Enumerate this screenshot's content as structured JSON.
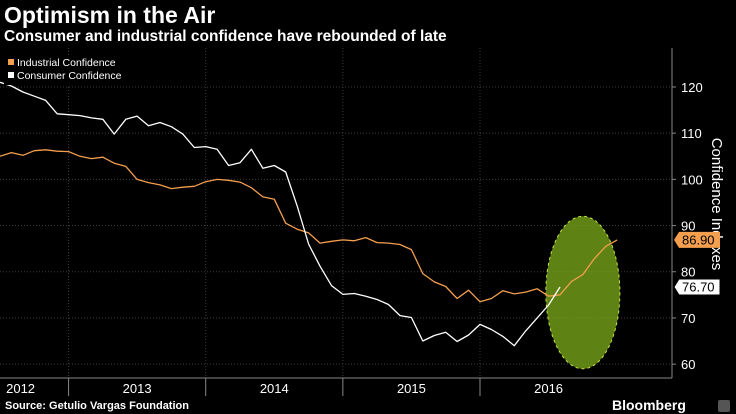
{
  "colors": {
    "background": "#000000",
    "industrial": "#f39f4e",
    "consumer": "#ffffff",
    "grid": "#3c3c3c",
    "highlight": "#7aa619"
  },
  "chart_data": {
    "type": "line",
    "title": "Optimism in the Air",
    "subtitle": "Consumer and industrial confidence have rebounded of late",
    "xlabel": "",
    "ylabel": "Confidence Indexes",
    "ylim": [
      57,
      128
    ],
    "yticks": [
      60,
      70,
      80,
      90,
      100,
      110,
      120
    ],
    "xlim": [
      2012.0,
      2016.9
    ],
    "year_boundaries": [
      2012.5,
      2013.5,
      2014.5,
      2015.5
    ],
    "year_labels": [
      {
        "label": "2012",
        "x": 2012.15
      },
      {
        "label": "2013",
        "x": 2013.0
      },
      {
        "label": "2014",
        "x": 2014.0
      },
      {
        "label": "2015",
        "x": 2015.0
      },
      {
        "label": "2016",
        "x": 2016.0
      }
    ],
    "legend": {
      "position": "top-left",
      "items": [
        "Industrial Confidence",
        "Consumer Confidence"
      ]
    },
    "source": "Source: Getulio Vargas Foundation",
    "brand": "Bloomberg",
    "last_value_labels": {
      "industrial": "86.90",
      "consumer": "76.70"
    },
    "highlight_region": {
      "x_center": 2016.25,
      "y_center": 75.5,
      "x_radius": 0.27,
      "y_radius": 16.5
    },
    "series": [
      {
        "name": "Industrial Confidence",
        "color": "#f39f4e",
        "values": [
          [
            2012.0,
            105.0
          ],
          [
            2012.083,
            105.8
          ],
          [
            2012.167,
            105.2
          ],
          [
            2012.25,
            106.2
          ],
          [
            2012.333,
            106.4
          ],
          [
            2012.417,
            106.1
          ],
          [
            2012.5,
            106.0
          ],
          [
            2012.583,
            105.0
          ],
          [
            2012.667,
            104.5
          ],
          [
            2012.75,
            104.8
          ],
          [
            2012.833,
            103.5
          ],
          [
            2012.917,
            102.8
          ],
          [
            2013.0,
            100.0
          ],
          [
            2013.083,
            99.3
          ],
          [
            2013.167,
            98.8
          ],
          [
            2013.25,
            98.0
          ],
          [
            2013.333,
            98.3
          ],
          [
            2013.417,
            98.5
          ],
          [
            2013.5,
            99.5
          ],
          [
            2013.583,
            100.0
          ],
          [
            2013.667,
            99.8
          ],
          [
            2013.75,
            99.4
          ],
          [
            2013.833,
            98.2
          ],
          [
            2013.917,
            96.2
          ],
          [
            2014.0,
            95.7
          ],
          [
            2014.083,
            90.5
          ],
          [
            2014.167,
            89.2
          ],
          [
            2014.25,
            88.4
          ],
          [
            2014.333,
            86.2
          ],
          [
            2014.417,
            86.6
          ],
          [
            2014.5,
            86.9
          ],
          [
            2014.583,
            86.7
          ],
          [
            2014.667,
            87.4
          ],
          [
            2014.75,
            86.3
          ],
          [
            2014.833,
            86.2
          ],
          [
            2014.917,
            85.9
          ],
          [
            2015.0,
            84.8
          ],
          [
            2015.083,
            79.6
          ],
          [
            2015.167,
            77.8
          ],
          [
            2015.25,
            76.8
          ],
          [
            2015.333,
            74.2
          ],
          [
            2015.417,
            76.0
          ],
          [
            2015.5,
            73.5
          ],
          [
            2015.583,
            74.2
          ],
          [
            2015.667,
            75.9
          ],
          [
            2015.75,
            75.2
          ],
          [
            2015.833,
            75.6
          ],
          [
            2015.917,
            76.3
          ],
          [
            2016.0,
            74.7
          ],
          [
            2016.083,
            75.0
          ],
          [
            2016.167,
            77.9
          ],
          [
            2016.25,
            79.4
          ],
          [
            2016.333,
            82.8
          ],
          [
            2016.417,
            85.5
          ],
          [
            2016.5,
            86.9
          ]
        ]
      },
      {
        "name": "Consumer Confidence",
        "color": "#ffffff",
        "values": [
          [
            2012.0,
            121.0
          ],
          [
            2012.083,
            120.2
          ],
          [
            2012.167,
            118.9
          ],
          [
            2012.25,
            118.0
          ],
          [
            2012.333,
            117.1
          ],
          [
            2012.417,
            114.2
          ],
          [
            2012.5,
            114.0
          ],
          [
            2012.583,
            113.8
          ],
          [
            2012.667,
            113.3
          ],
          [
            2012.75,
            113.0
          ],
          [
            2012.833,
            109.8
          ],
          [
            2012.917,
            113.0
          ],
          [
            2013.0,
            113.7
          ],
          [
            2013.083,
            111.6
          ],
          [
            2013.167,
            112.3
          ],
          [
            2013.25,
            111.4
          ],
          [
            2013.333,
            109.8
          ],
          [
            2013.417,
            106.9
          ],
          [
            2013.5,
            107.1
          ],
          [
            2013.583,
            106.5
          ],
          [
            2013.667,
            103.0
          ],
          [
            2013.75,
            103.6
          ],
          [
            2013.833,
            106.5
          ],
          [
            2013.917,
            102.4
          ],
          [
            2014.0,
            103.0
          ],
          [
            2014.083,
            101.6
          ],
          [
            2014.167,
            94.2
          ],
          [
            2014.25,
            86.0
          ],
          [
            2014.333,
            81.2
          ],
          [
            2014.417,
            77.0
          ],
          [
            2014.5,
            75.1
          ],
          [
            2014.583,
            75.3
          ],
          [
            2014.667,
            74.7
          ],
          [
            2014.75,
            74.0
          ],
          [
            2014.833,
            72.9
          ],
          [
            2014.917,
            70.5
          ],
          [
            2015.0,
            70.1
          ],
          [
            2015.083,
            65.0
          ],
          [
            2015.167,
            66.2
          ],
          [
            2015.25,
            66.9
          ],
          [
            2015.333,
            64.9
          ],
          [
            2015.417,
            66.3
          ],
          [
            2015.5,
            68.6
          ],
          [
            2015.583,
            67.5
          ],
          [
            2015.667,
            66.0
          ],
          [
            2015.75,
            64.0
          ],
          [
            2015.833,
            67.2
          ],
          [
            2015.917,
            70.0
          ],
          [
            2016.0,
            72.8
          ],
          [
            2016.083,
            76.7
          ]
        ]
      }
    ]
  }
}
